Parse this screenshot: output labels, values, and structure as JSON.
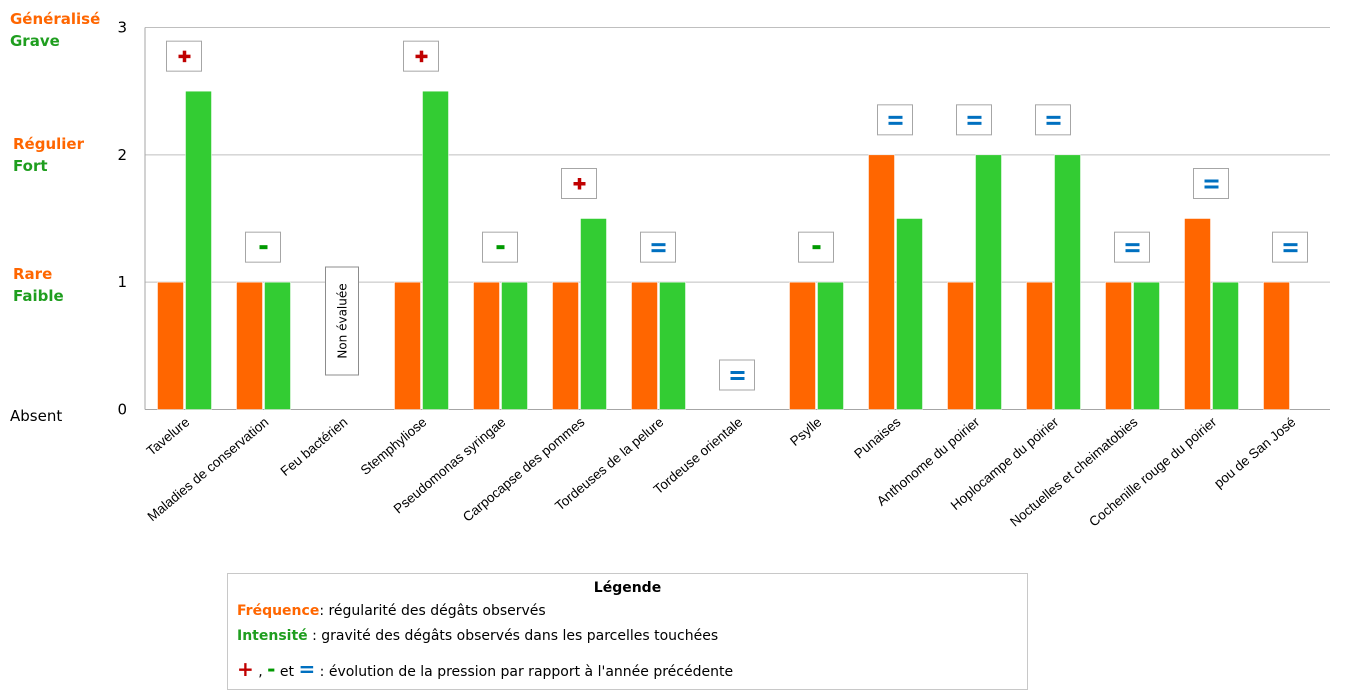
{
  "levels": {
    "l3_freq": "Généralisé",
    "l3_int": "Grave",
    "l2_freq": "Régulier",
    "l2_int": "Fort",
    "l1_freq": "Rare",
    "l1_int": "Faible",
    "l0": "Absent"
  },
  "chart_data": {
    "type": "bar",
    "ylim": [
      0,
      3
    ],
    "yticks": [
      "0",
      "1",
      "2",
      "3"
    ],
    "grid": true,
    "categories": [
      "Tavelure",
      "Maladies de conservation",
      "Feu bactérien",
      "Stemphyliose",
      "Pseudomonas syringae",
      "Carpocapse des pommes",
      "Tordeuses de la pelure",
      "Tordeuse orientale",
      "Psylle",
      "Punaises",
      "Anthonome du poirier",
      "Hoplocampe du poirier",
      "Noctuelles et cheimatobies",
      "Cochenille rouge du poirier",
      "pou de San José"
    ],
    "series": [
      {
        "color": "#ff6600",
        "values": [
          1,
          1,
          null,
          1,
          1,
          1,
          1,
          null,
          1,
          2,
          1,
          1,
          1,
          1.5,
          1
        ]
      },
      {
        "color": "#33cc33",
        "values": [
          2.5,
          1,
          null,
          2.5,
          1,
          1.5,
          1,
          null,
          1,
          1.5,
          2,
          2,
          1,
          1,
          null
        ]
      }
    ],
    "trend": [
      "+",
      "-",
      null,
      "+",
      "-",
      "+",
      "=",
      "=",
      "-",
      "=",
      "=",
      "=",
      "=",
      "=",
      "="
    ],
    "annotation": "Non évaluée",
    "colors": {
      "plus": "#c00000",
      "minus": "#009900",
      "equal": "#0070c0",
      "frequence": "#ff6600",
      "intensite": "#1f9e1f"
    }
  },
  "legend": {
    "title": "Légende",
    "freq_term": "Fréquence",
    "freq_text": ": régularité des dégâts observés",
    "int_term": "Intensité",
    "int_text": " : gravité des dégâts observés dans les parcelles touchées",
    "plus": "+",
    "sep1": " , ",
    "minus": "-",
    "and": " et ",
    "equal": "=",
    "evo_text": " : évolution de la pression par rapport à l'année précédente"
  }
}
